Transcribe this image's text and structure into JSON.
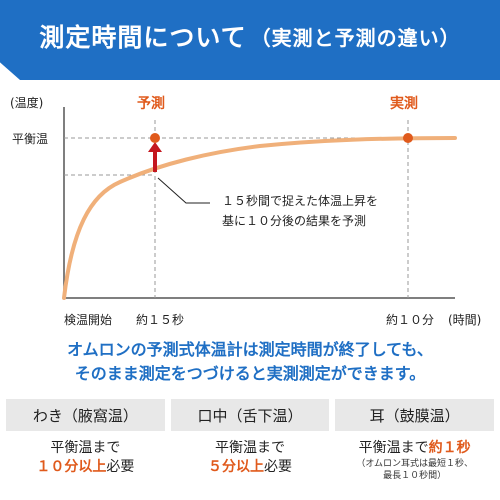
{
  "header": {
    "title": "測定時間について",
    "subtitle": "（実測と予測の違い）"
  },
  "chart_data": {
    "type": "line",
    "y_axis_label": "(温度)",
    "x_axis_label": "(時間)",
    "y_tick_label": "平衡温",
    "x_tick_labels": [
      "検温開始",
      "約１５秒",
      "約１０分"
    ],
    "markers": [
      {
        "label": "予測",
        "time_label": "約１５秒"
      },
      {
        "label": "実測",
        "time_label": "約１０分"
      }
    ],
    "annotation": [
      "１５秒間で捉えた体温上昇を",
      "基に１０分後の結果を予測"
    ],
    "curve_color": "#f0b07a",
    "marker_color": "#e05a1c",
    "arrow_color": "#c4171e"
  },
  "message": {
    "line1": "オムロンの予測式体温計は測定時間が終了しても、",
    "line2": "そのまま測定をつづけると実測測定ができます。"
  },
  "cards": [
    {
      "title": "わき（腋窩温）",
      "line1": "平衡温まで",
      "highlight": "１０分以上",
      "suffix": "必要",
      "note1": "",
      "note2": ""
    },
    {
      "title": "口中（舌下温）",
      "line1": "平衡温まで",
      "highlight": "５分以上",
      "suffix": "必要",
      "note1": "",
      "note2": ""
    },
    {
      "title": "耳（鼓膜温）",
      "line1": "平衡温まで",
      "highlight": "約１秒",
      "suffix": "",
      "note1": "（オムロン耳式は最短１秒、",
      "note2": "最長１０秒間）"
    }
  ],
  "colors": {
    "brand_blue": "#1f6fc4",
    "orange": "#e05a1c",
    "card_gray": "#e8e8e8"
  }
}
